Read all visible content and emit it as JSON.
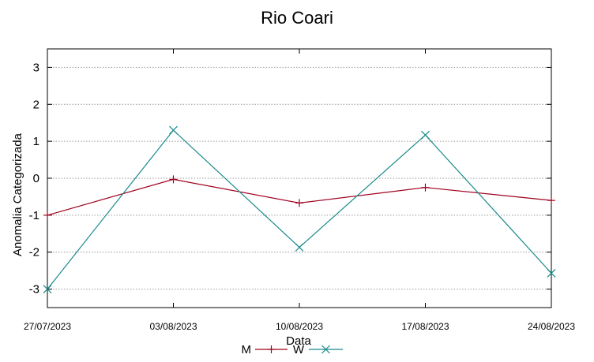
{
  "chart_data": {
    "type": "line",
    "title": "Rio Coari",
    "xlabel": "Data",
    "ylabel": "Anomalia Categorizada",
    "x": [
      "27/07/2023",
      "03/08/2023",
      "10/08/2023",
      "17/08/2023",
      "24/08/2023"
    ],
    "ylim": [
      -3.5,
      3.5
    ],
    "yticks": [
      -3,
      -2,
      -1,
      0,
      1,
      2,
      3
    ],
    "grid": true,
    "legend_position": "bottom-center",
    "series": [
      {
        "name": "M",
        "color": "#a0001e",
        "marker": "plus",
        "values": [
          -1.0,
          -0.03,
          -0.67,
          -0.25,
          -0.6
        ]
      },
      {
        "name": "W",
        "color": "#1a8a8a",
        "marker": "cross",
        "values": [
          -3.0,
          1.3,
          -1.87,
          1.17,
          -2.57
        ]
      }
    ]
  }
}
